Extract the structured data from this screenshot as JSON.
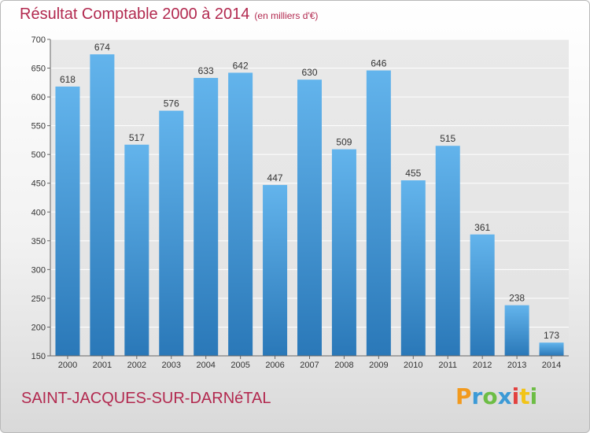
{
  "header": {
    "title": "Résultat Comptable 2000 à 2014",
    "subtitle": "(en milliers d'€)"
  },
  "footer": {
    "commune": "SAINT-JACQUES-SUR-DARNéTAL",
    "logo": "Proxiti"
  },
  "colors": {
    "title": "#b2294f",
    "bar_top": "#63b4ec",
    "bar_bottom": "#2a78b8",
    "logo": [
      "#f29a1e",
      "#3c9ad6",
      "#6dbd45",
      "#3c9ad6",
      "#e2413f",
      "#f2c418",
      "#6dbd45"
    ]
  },
  "chart_data": {
    "type": "bar",
    "categories": [
      "2000",
      "2001",
      "2002",
      "2003",
      "2004",
      "2005",
      "2006",
      "2007",
      "2008",
      "2009",
      "2010",
      "2011",
      "2012",
      "2013",
      "2014"
    ],
    "values": [
      618,
      674,
      517,
      576,
      633,
      642,
      447,
      630,
      509,
      646,
      455,
      515,
      361,
      238,
      173
    ],
    "ylim": [
      150,
      700
    ],
    "yticks": [
      150,
      200,
      250,
      300,
      350,
      400,
      450,
      500,
      550,
      600,
      650,
      700
    ],
    "grid": true,
    "data_labels": true
  }
}
